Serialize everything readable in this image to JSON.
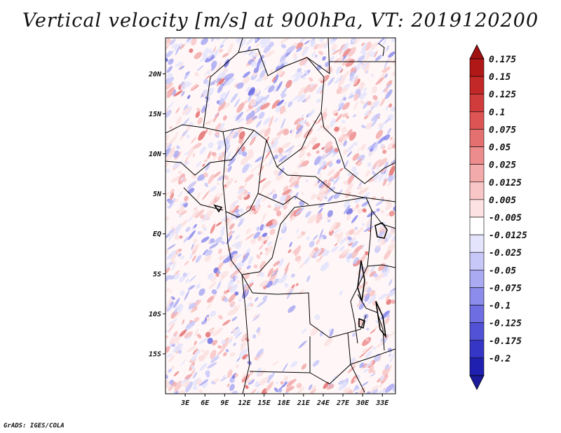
{
  "title": "Vertical velocity [m/s] at 900hPa, VT: 2019120200",
  "footer": "GrADS: IGES/COLA",
  "map": {
    "variable": "Vertical velocity",
    "units": "m/s",
    "level": "900hPa",
    "valid_time": "2019120200",
    "lon_range": [
      0,
      35
    ],
    "lat_range": [
      -20,
      24.5
    ],
    "x_ticks": [
      {
        "value": 3,
        "label": "3E"
      },
      {
        "value": 6,
        "label": "6E"
      },
      {
        "value": 9,
        "label": "9E"
      },
      {
        "value": 12,
        "label": "12E"
      },
      {
        "value": 15,
        "label": "15E"
      },
      {
        "value": 18,
        "label": "18E"
      },
      {
        "value": 21,
        "label": "21E"
      },
      {
        "value": 24,
        "label": "24E"
      },
      {
        "value": 27,
        "label": "27E"
      },
      {
        "value": 30,
        "label": "30E"
      },
      {
        "value": 33,
        "label": "33E"
      }
    ],
    "y_ticks": [
      {
        "value": 20,
        "label": "20N"
      },
      {
        "value": 15,
        "label": "15N"
      },
      {
        "value": 10,
        "label": "10N"
      },
      {
        "value": 5,
        "label": "5N"
      },
      {
        "value": 0,
        "label": "EQ"
      },
      {
        "value": -5,
        "label": "5S"
      },
      {
        "value": -10,
        "label": "10S"
      },
      {
        "value": -15,
        "label": "15S"
      }
    ]
  },
  "colorbar": {
    "levels": [
      {
        "label": "0.175",
        "color": "#b01818"
      },
      {
        "label": "0.15",
        "color": "#c22828"
      },
      {
        "label": "0.125",
        "color": "#d03c3c"
      },
      {
        "label": "0.1",
        "color": "#dc5454"
      },
      {
        "label": "0.075",
        "color": "#e47070"
      },
      {
        "label": "0.05",
        "color": "#ec8c8c"
      },
      {
        "label": "0.025",
        "color": "#f2aaaa"
      },
      {
        "label": "0.0125",
        "color": "#f8c6c6"
      },
      {
        "label": "0.005",
        "color": "#fce2e2"
      },
      {
        "label": "-0.005",
        "color": "#ffffff"
      },
      {
        "label": "-0.0125",
        "color": "#e4e4fc"
      },
      {
        "label": "-0.025",
        "color": "#c8c8f8"
      },
      {
        "label": "-0.05",
        "color": "#aaaaf2"
      },
      {
        "label": "-0.075",
        "color": "#8c8cec"
      },
      {
        "label": "-0.1",
        "color": "#6e6ee2"
      },
      {
        "label": "-0.125",
        "color": "#5252d6"
      },
      {
        "label": "-0.175",
        "color": "#3636c6"
      },
      {
        "label": "-0.2",
        "color": "#2020b0"
      }
    ],
    "top_color": "#a01010",
    "bottom_color": "#1a1a9a"
  }
}
